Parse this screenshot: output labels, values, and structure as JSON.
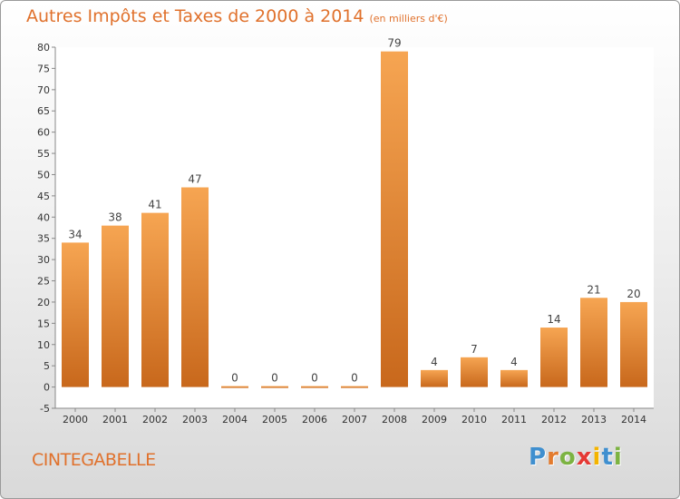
{
  "title": "Autres Impôts et Taxes de 2000 à 2014",
  "unit": "(en milliers d'€)",
  "commune": "CINTEGABELLE",
  "logo": [
    "P",
    "r",
    "o",
    "x",
    "i",
    "t",
    "i"
  ],
  "logo_colors": [
    "#3f8fcf",
    "#e37b2d",
    "#7cb342",
    "#e53935",
    "#f4b400",
    "#3f8fcf",
    "#7cb342"
  ],
  "colors": {
    "bar_light": "#f6a552",
    "bar_dark": "#c8681c",
    "text": "#e0712c"
  },
  "chart_data": {
    "type": "bar",
    "categories": [
      "2000",
      "2001",
      "2002",
      "2003",
      "2004",
      "2005",
      "2006",
      "2007",
      "2008",
      "2009",
      "2010",
      "2011",
      "2012",
      "2013",
      "2014"
    ],
    "values": [
      34,
      38,
      41,
      47,
      0,
      0,
      0,
      0,
      79,
      4,
      7,
      4,
      14,
      21,
      20
    ],
    "data_labels": [
      "34",
      "38",
      "41",
      "47",
      "0",
      "0",
      "0",
      "0",
      "79",
      "4",
      "7",
      "4",
      "14",
      "21",
      "20"
    ],
    "ylim": [
      -5,
      80
    ],
    "yticks": [
      "-5",
      "0",
      "5",
      "10",
      "15",
      "20",
      "25",
      "30",
      "35",
      "40",
      "45",
      "50",
      "55",
      "60",
      "65",
      "70",
      "75",
      "80"
    ],
    "grid": false
  }
}
